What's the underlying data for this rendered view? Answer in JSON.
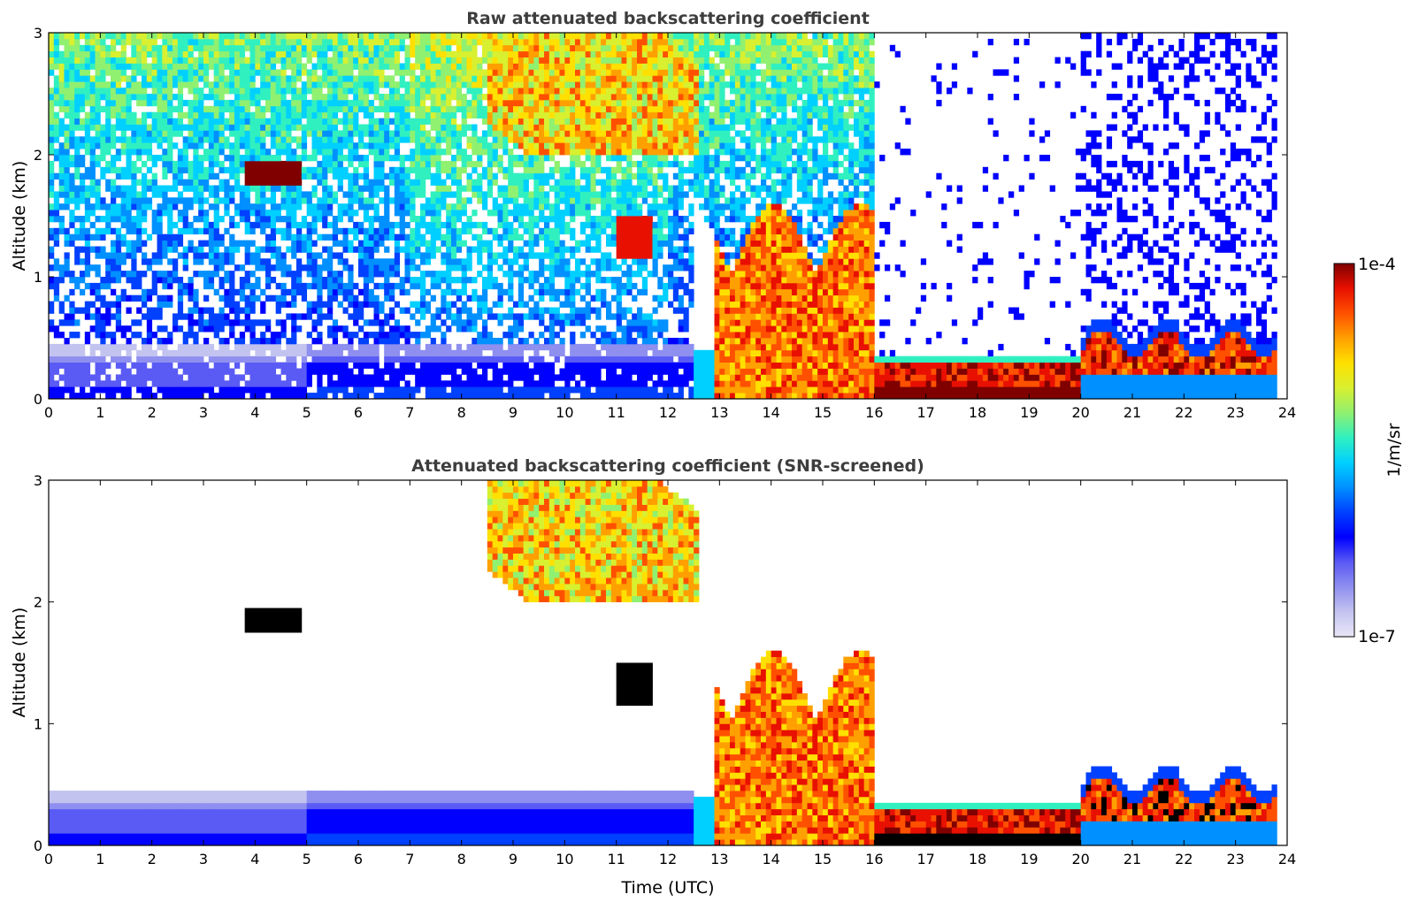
{
  "chart_data": [
    {
      "type": "heatmap",
      "title": "Raw attenuated backscattering coefficient",
      "xlabel": "",
      "ylabel": "Altitude (km)",
      "xlim": [
        0,
        24
      ],
      "ylim": [
        0,
        3
      ],
      "x_ticks": [
        "0",
        "1",
        "2",
        "3",
        "4",
        "5",
        "6",
        "7",
        "8",
        "9",
        "10",
        "11",
        "12",
        "13",
        "14",
        "15",
        "16",
        "17",
        "18",
        "19",
        "20",
        "21",
        "22",
        "23",
        "24"
      ],
      "y_ticks": [
        "0",
        "1",
        "2",
        "3"
      ],
      "colorbar": {
        "label": "1/m/sr",
        "min_label": "1e-7",
        "max_label": "1e-4",
        "scale": "log"
      },
      "features": [
        {
          "x": [
            3.8,
            4.8
          ],
          "y": [
            1.75,
            1.95
          ],
          "level": "high"
        },
        {
          "x": [
            11.0,
            11.7
          ],
          "y": [
            1.15,
            1.55
          ],
          "level": "high"
        },
        {
          "x": [
            8.5,
            12.5
          ],
          "y": [
            2.0,
            3.0
          ],
          "level": "mid-high"
        },
        {
          "x": [
            12.5,
            16.0
          ],
          "y": [
            0.0,
            1.7
          ],
          "level": "high"
        },
        {
          "x": [
            16.0,
            20.0
          ],
          "y": [
            0.05,
            0.3
          ],
          "level": "high"
        },
        {
          "x": [
            20.0,
            23.8
          ],
          "y": [
            0.1,
            0.6
          ],
          "level": "high"
        },
        {
          "x": [
            0.0,
            12.5
          ],
          "y": [
            0.0,
            0.4
          ],
          "level": "low"
        }
      ]
    },
    {
      "type": "heatmap",
      "title": "Attenuated backscattering coefficient (SNR-screened)",
      "xlabel": "Time (UTC)",
      "ylabel": "Altitude (km)",
      "xlim": [
        0,
        24
      ],
      "ylim": [
        0,
        3
      ],
      "x_ticks": [
        "0",
        "1",
        "2",
        "3",
        "4",
        "5",
        "6",
        "7",
        "8",
        "9",
        "10",
        "11",
        "12",
        "13",
        "14",
        "15",
        "16",
        "17",
        "18",
        "19",
        "20",
        "21",
        "22",
        "23",
        "24"
      ],
      "y_ticks": [
        "0",
        "1",
        "2",
        "3"
      ],
      "colorbar": {
        "label": "1/m/sr",
        "min_label": "1e-7",
        "max_label": "1e-4",
        "scale": "log"
      },
      "features": [
        {
          "x": [
            3.8,
            5.0
          ],
          "y": [
            1.7,
            1.95
          ],
          "level": "saturated"
        },
        {
          "x": [
            11.0,
            11.7
          ],
          "y": [
            1.15,
            1.55
          ],
          "level": "saturated"
        },
        {
          "x": [
            8.5,
            12.5
          ],
          "y": [
            2.0,
            3.0
          ],
          "level": "mid-high"
        },
        {
          "x": [
            12.5,
            16.0
          ],
          "y": [
            0.0,
            1.7
          ],
          "level": "high"
        },
        {
          "x": [
            16.0,
            20.0
          ],
          "y": [
            0.05,
            0.3
          ],
          "level": "saturated"
        },
        {
          "x": [
            20.0,
            23.8
          ],
          "y": [
            0.1,
            0.75
          ],
          "level": "high"
        },
        {
          "x": [
            0.0,
            12.5
          ],
          "y": [
            0.0,
            0.5
          ],
          "level": "low"
        }
      ]
    }
  ],
  "colors": {
    "colormap": [
      "#e9e6f6",
      "#c3c3f0",
      "#8f8ff0",
      "#5a5af5",
      "#0000ff",
      "#0040ff",
      "#0090ff",
      "#00d0ff",
      "#30f0c0",
      "#90f070",
      "#d8f030",
      "#ffe000",
      "#ffa000",
      "#ff5000",
      "#e81000",
      "#800000"
    ],
    "saturated": "#000000"
  }
}
